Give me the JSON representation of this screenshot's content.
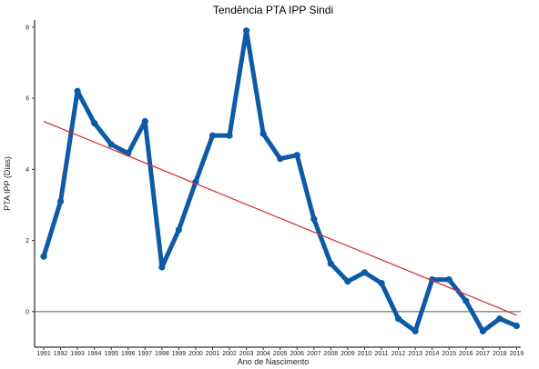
{
  "chart_data": {
    "type": "line",
    "title": "Tendência PTA IPP Sindi",
    "xlabel": "Ano de Nascimento",
    "ylabel": "PTA IPP (Dias)",
    "categories": [
      "1991",
      "1992",
      "1993",
      "1994",
      "1995",
      "1996",
      "1997",
      "1998",
      "1999",
      "2000",
      "2001",
      "2002",
      "2003",
      "2004",
      "2005",
      "2006",
      "2007",
      "2008",
      "2009",
      "2010",
      "2011",
      "2012",
      "2013",
      "2014",
      "2015",
      "2016",
      "2017",
      "2018",
      "2019"
    ],
    "series": [
      {
        "values": [
          1.55,
          3.1,
          6.2,
          5.3,
          4.7,
          4.45,
          5.35,
          1.25,
          2.3,
          3.65,
          4.95,
          4.95,
          7.9,
          5.0,
          4.3,
          4.4,
          2.6,
          1.35,
          0.85,
          1.1,
          0.8,
          -0.2,
          -0.55,
          0.9,
          0.9,
          0.3,
          -0.55,
          -0.2,
          -0.4
        ],
        "color": "#0d5aa7"
      }
    ],
    "trendline": {
      "start": 5.35,
      "end": -0.1,
      "color": "#d62728"
    },
    "reference_line": {
      "y": 0,
      "color": "#555555"
    },
    "yticks": [
      0,
      2,
      4,
      6,
      8
    ],
    "ylim": [
      -1,
      8.2
    ],
    "grid": false,
    "legend": "none"
  }
}
